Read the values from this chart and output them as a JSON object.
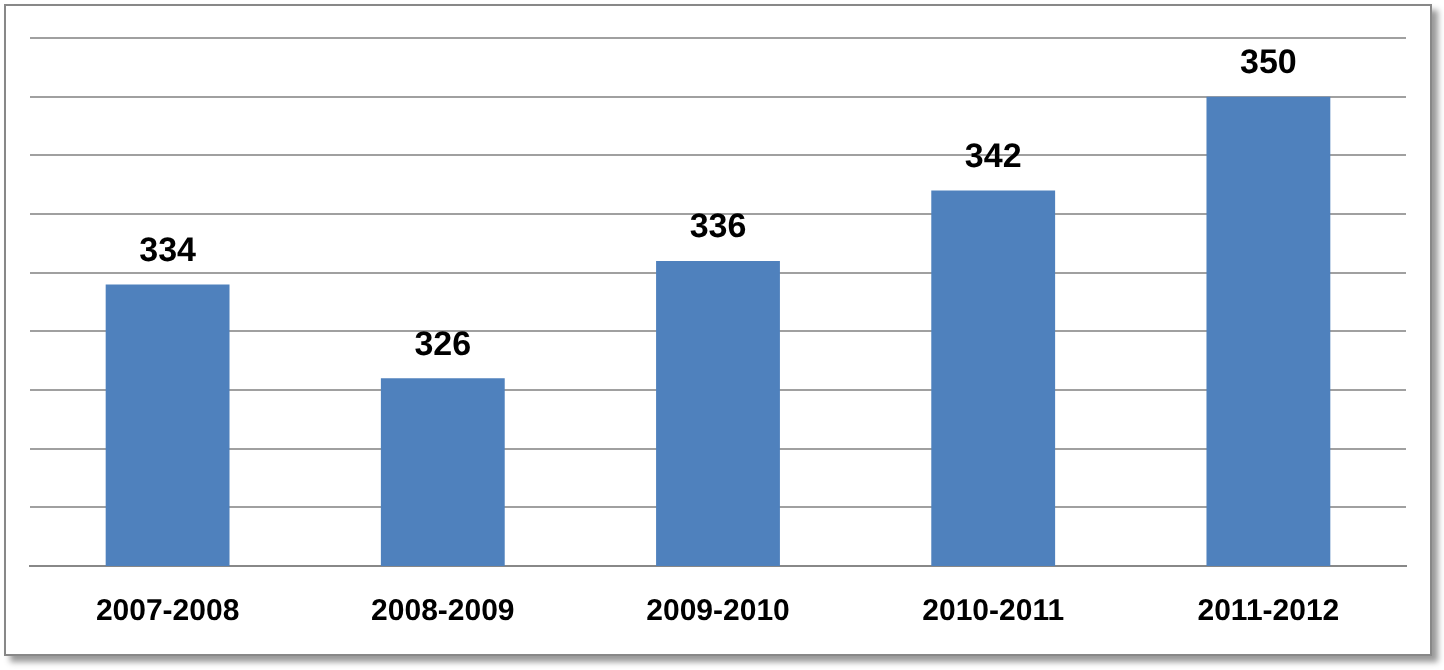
{
  "chart_data": {
    "type": "bar",
    "categories": [
      "2007-2008",
      "2008-2009",
      "2009-2010",
      "2010-2011",
      "2011-2012"
    ],
    "values": [
      334,
      326,
      336,
      342,
      350
    ],
    "color": "#4f81bd",
    "ylim": [
      310,
      355
    ],
    "yticks": [
      {
        "value": 310,
        "label": null
      },
      {
        "value": 315,
        "label": null
      },
      {
        "value": 320,
        "label": null
      },
      {
        "value": 325,
        "label": null
      },
      {
        "value": 330,
        "label": null
      },
      {
        "value": 335,
        "label": null
      },
      {
        "value": 340,
        "label": null
      },
      {
        "value": 345,
        "label": null
      },
      {
        "value": 350,
        "label": null
      },
      {
        "value": 355,
        "label": null
      }
    ],
    "grid": "y",
    "tick_labels": "x",
    "data_labels": true
  }
}
